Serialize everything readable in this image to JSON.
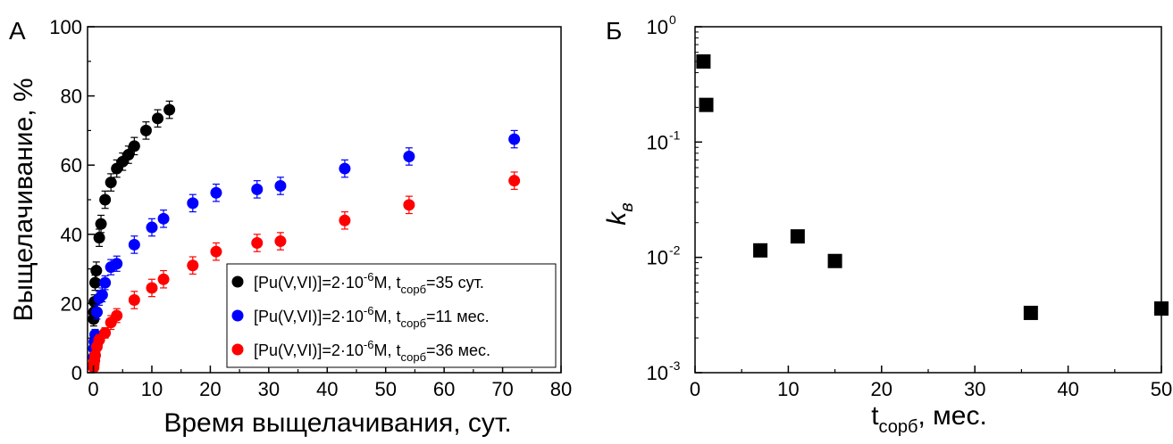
{
  "chart_data": [
    {
      "panel_label": "А",
      "type": "scatter",
      "xlabel": "Время выщелачивания, сут.",
      "ylabel": "Выщелачивание, %",
      "xlim": [
        -1,
        80
      ],
      "ylim": [
        0,
        100
      ],
      "xticks": [
        "0",
        "10",
        "20",
        "30",
        "40",
        "50",
        "60",
        "70",
        "80"
      ],
      "yticks": [
        "0",
        "20",
        "40",
        "60",
        "80",
        "100"
      ],
      "error_bars": true,
      "legend_position": "bottom-right",
      "series": [
        {
          "name": "[Pu(V,VI)]=2·10⁻⁶M, tсорб=35 сут.",
          "legend": {
            "pre": "[Pu(V,VI)]=2·10",
            "exp": "-6",
            "mid": "M, t",
            "sub": "сорб",
            "post": "=35 сут."
          },
          "color": "#000000",
          "points": [
            {
              "x": 0.04,
              "y": 15.5,
              "err": 2.0
            },
            {
              "x": 0.08,
              "y": 17.5,
              "err": 2.0
            },
            {
              "x": 0.17,
              "y": 20.5,
              "err": 2.0
            },
            {
              "x": 0.3,
              "y": 26.0,
              "err": 2.2
            },
            {
              "x": 0.5,
              "y": 29.5,
              "err": 2.5
            },
            {
              "x": 1,
              "y": 39.0,
              "err": 2.5
            },
            {
              "x": 1.3,
              "y": 43.0,
              "err": 2.5
            },
            {
              "x": 2,
              "y": 50.0,
              "err": 2.5
            },
            {
              "x": 3,
              "y": 55.0,
              "err": 2.5
            },
            {
              "x": 4,
              "y": 59.0,
              "err": 2.5
            },
            {
              "x": 5,
              "y": 61.0,
              "err": 2.5
            },
            {
              "x": 6,
              "y": 63.0,
              "err": 2.5
            },
            {
              "x": 7,
              "y": 65.5,
              "err": 2.5
            },
            {
              "x": 9,
              "y": 70.0,
              "err": 2.5
            },
            {
              "x": 11,
              "y": 73.5,
              "err": 2.5
            },
            {
              "x": 13,
              "y": 76.0,
              "err": 2.5
            }
          ]
        },
        {
          "name": "[Pu(V,VI)]=2·10⁻⁶M, tсорб=11 мес.",
          "legend": {
            "pre": "[Pu(V,VI)]=2·10",
            "exp": "-6",
            "mid": "M, t",
            "sub": "сорб",
            "post": "=11 мес."
          },
          "color": "#0000ff",
          "points": [
            {
              "x": 0.04,
              "y": 4.5,
              "err": 1.5
            },
            {
              "x": 0.08,
              "y": 7.0,
              "err": 1.5
            },
            {
              "x": 0.17,
              "y": 9.0,
              "err": 1.5
            },
            {
              "x": 0.3,
              "y": 11.0,
              "err": 1.5
            },
            {
              "x": 0.6,
              "y": 17.5,
              "err": 2.0
            },
            {
              "x": 1,
              "y": 21.5,
              "err": 2.0
            },
            {
              "x": 1.5,
              "y": 22.5,
              "err": 2.0
            },
            {
              "x": 2,
              "y": 26.0,
              "err": 2.0
            },
            {
              "x": 3,
              "y": 30.5,
              "err": 2.2
            },
            {
              "x": 4,
              "y": 31.5,
              "err": 2.2
            },
            {
              "x": 7,
              "y": 37.0,
              "err": 2.5
            },
            {
              "x": 10,
              "y": 42.0,
              "err": 2.5
            },
            {
              "x": 12,
              "y": 44.5,
              "err": 2.5
            },
            {
              "x": 17,
              "y": 49.0,
              "err": 2.5
            },
            {
              "x": 21,
              "y": 52.0,
              "err": 2.5
            },
            {
              "x": 28,
              "y": 53.0,
              "err": 2.5
            },
            {
              "x": 32,
              "y": 54.0,
              "err": 2.5
            },
            {
              "x": 43,
              "y": 59.0,
              "err": 2.5
            },
            {
              "x": 54,
              "y": 62.5,
              "err": 2.5
            },
            {
              "x": 72,
              "y": 67.5,
              "err": 2.5
            }
          ]
        },
        {
          "name": "[Pu(V,VI)]=2·10⁻⁶M, tсорб=36 мес.",
          "legend": {
            "pre": "[Pu(V,VI)]=2·10",
            "exp": "-6",
            "mid": "M, t",
            "sub": "сорб",
            "post": "=36 мес."
          },
          "color": "#ff0000",
          "points": [
            {
              "x": 0.04,
              "y": 1.5,
              "err": 1.0
            },
            {
              "x": 0.08,
              "y": 2.5,
              "err": 1.0
            },
            {
              "x": 0.17,
              "y": 3.5,
              "err": 1.0
            },
            {
              "x": 0.3,
              "y": 5.0,
              "err": 1.0
            },
            {
              "x": 0.6,
              "y": 7.5,
              "err": 1.5
            },
            {
              "x": 1,
              "y": 9.5,
              "err": 1.5
            },
            {
              "x": 2,
              "y": 11.5,
              "err": 1.5
            },
            {
              "x": 3,
              "y": 14.5,
              "err": 2.0
            },
            {
              "x": 4,
              "y": 16.5,
              "err": 2.0
            },
            {
              "x": 7,
              "y": 21.0,
              "err": 2.5
            },
            {
              "x": 10,
              "y": 24.5,
              "err": 2.5
            },
            {
              "x": 12,
              "y": 27.0,
              "err": 2.5
            },
            {
              "x": 17,
              "y": 31.0,
              "err": 2.5
            },
            {
              "x": 21,
              "y": 35.0,
              "err": 2.5
            },
            {
              "x": 28,
              "y": 37.5,
              "err": 2.5
            },
            {
              "x": 32,
              "y": 38.0,
              "err": 2.5
            },
            {
              "x": 43,
              "y": 44.0,
              "err": 2.5
            },
            {
              "x": 54,
              "y": 48.5,
              "err": 2.5
            },
            {
              "x": 72,
              "y": 55.5,
              "err": 2.5
            }
          ]
        }
      ]
    },
    {
      "panel_label": "Б",
      "type": "scatter",
      "scale_y": "log",
      "xlabel": {
        "base": "t",
        "sub": "сорб",
        "post": ", мес."
      },
      "ylabel": {
        "base": "k",
        "sub": "в"
      },
      "xlim": [
        0,
        50
      ],
      "ylim": [
        0.001,
        1
      ],
      "xticks": [
        "0",
        "10",
        "20",
        "30",
        "40",
        "50"
      ],
      "yticks": [
        {
          "base": "10",
          "exp": "0",
          "value": 1
        },
        {
          "base": "10",
          "exp": "-1",
          "value": 0.1
        },
        {
          "base": "10",
          "exp": "-2",
          "value": 0.01
        },
        {
          "base": "10",
          "exp": "-3",
          "value": 0.001
        }
      ],
      "marker": "square",
      "color": "#000000",
      "points": [
        {
          "x": 0.9,
          "y": 0.5
        },
        {
          "x": 1.2,
          "y": 0.21
        },
        {
          "x": 7,
          "y": 0.0115
        },
        {
          "x": 11,
          "y": 0.0152
        },
        {
          "x": 15,
          "y": 0.0093
        },
        {
          "x": 36,
          "y": 0.0033
        },
        {
          "x": 50,
          "y": 0.0036
        }
      ]
    }
  ]
}
